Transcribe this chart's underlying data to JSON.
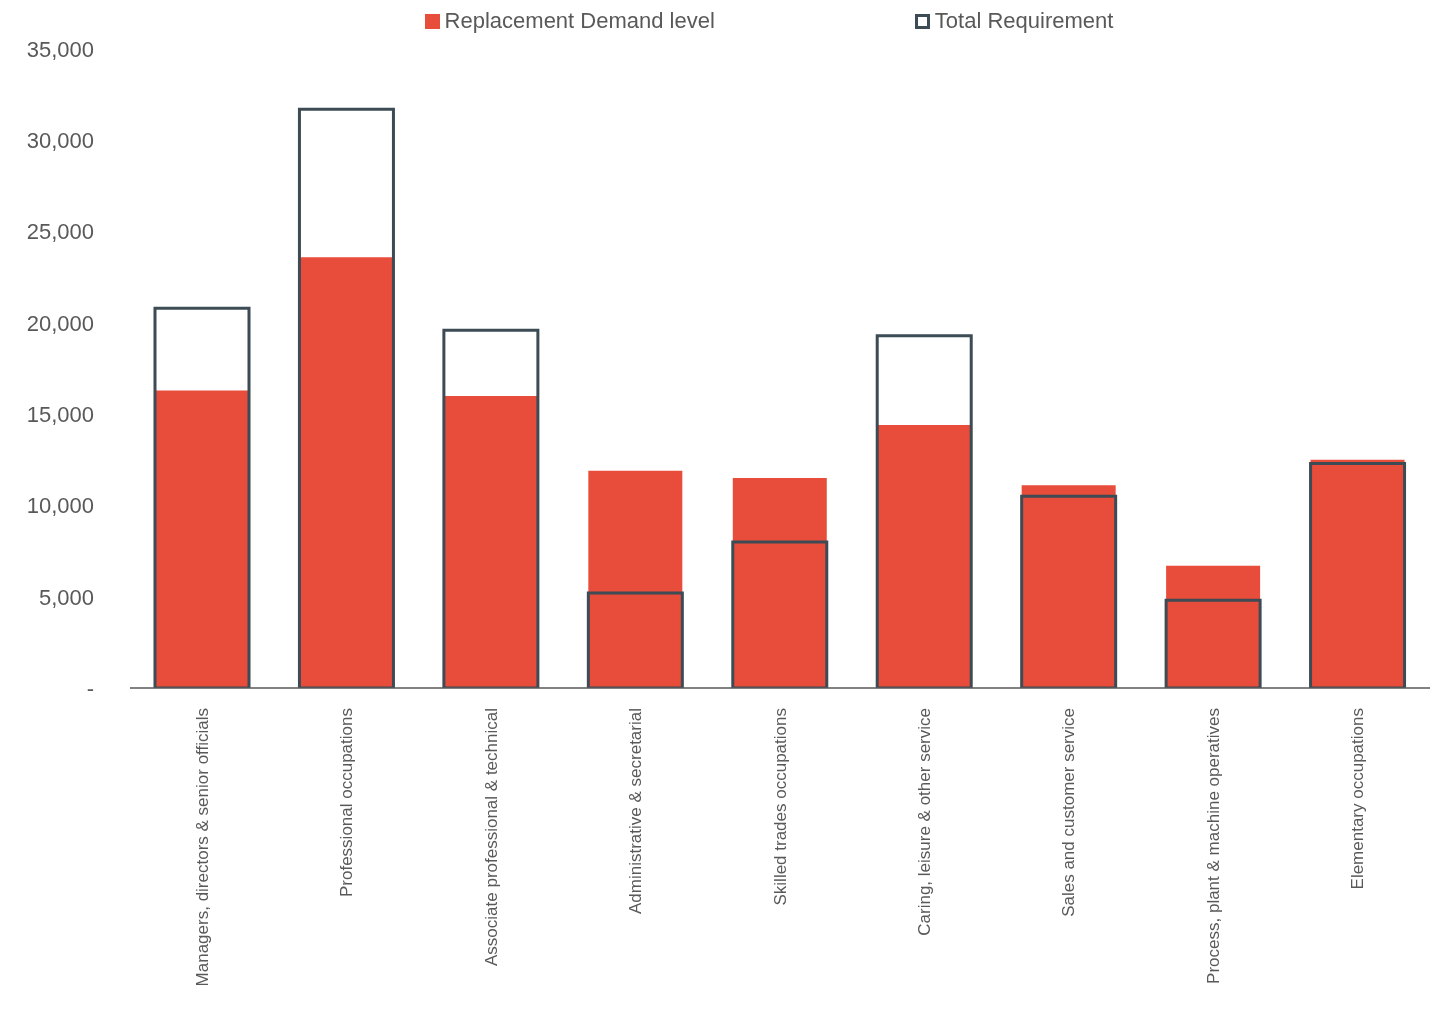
{
  "chart_data": {
    "type": "bar",
    "categories": [
      "Managers, directors & senior officials",
      "Professional occupations",
      "Associate professional & technical",
      "Administrative & secretarial",
      "Skilled trades occupations",
      "Caring, leisure & other service",
      "Sales and customer service",
      "Process, plant & machine operatives",
      "Elementary occupations"
    ],
    "series": [
      {
        "name": "Replacement Demand level",
        "color": "#e84c3a",
        "values": [
          16300,
          23600,
          16000,
          11900,
          11500,
          14400,
          11100,
          6700,
          12500
        ]
      },
      {
        "name": "Total Requirement",
        "color": "#3d4b55",
        "values": [
          20800,
          31700,
          19600,
          5200,
          8000,
          19300,
          10500,
          4800,
          12300
        ]
      }
    ],
    "ylim": [
      0,
      35000
    ],
    "yticks": [
      {
        "value": 0,
        "label": "-"
      },
      {
        "value": 5000,
        "label": "5,000"
      },
      {
        "value": 10000,
        "label": "10,000"
      },
      {
        "value": 15000,
        "label": "15,000"
      },
      {
        "value": 20000,
        "label": "20,000"
      },
      {
        "value": 25000,
        "label": "25,000"
      },
      {
        "value": 30000,
        "label": "30,000"
      },
      {
        "value": 35000,
        "label": "35,000"
      }
    ],
    "legend": "top"
  }
}
